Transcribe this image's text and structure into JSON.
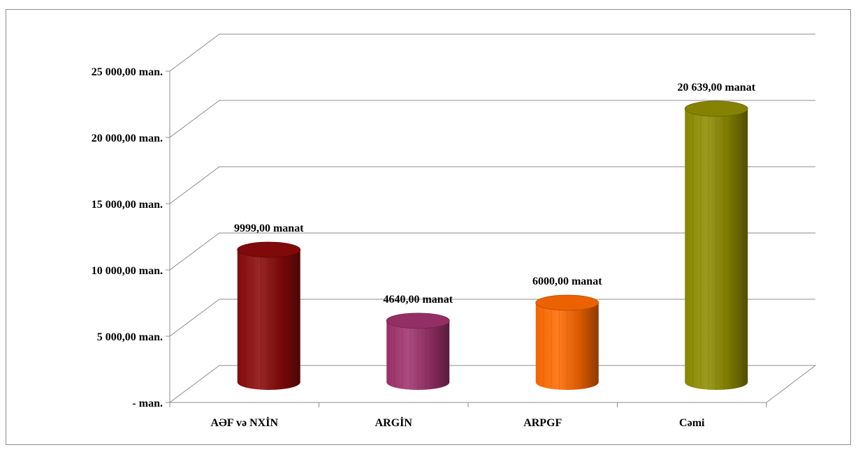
{
  "chart_data": {
    "type": "bar",
    "style": "3d-cylinder",
    "title": "",
    "xlabel": "",
    "ylabel": "",
    "ylim": [
      0,
      25000
    ],
    "y_ticks": [
      0,
      5000,
      10000,
      15000,
      20000,
      25000
    ],
    "y_tick_labels": [
      "-    man.",
      "5 000,00 man.",
      "10 000,00 man.",
      "15 000,00 man.",
      "20 000,00 man.",
      "25 000,00 man."
    ],
    "grid": true,
    "legend": "none",
    "categories": [
      "AƏF və NXİN",
      "ARGİN",
      "ARPGF",
      "Cəmi"
    ],
    "values": [
      9999,
      4640,
      6000,
      20639
    ],
    "data_labels": [
      "9999,00 manat",
      "4640,00 manat",
      "6000,00 manat",
      "20 639,00 manat"
    ],
    "colors": [
      "#8b0a0a",
      "#a0336d",
      "#ff6a00",
      "#8f8d00"
    ]
  }
}
